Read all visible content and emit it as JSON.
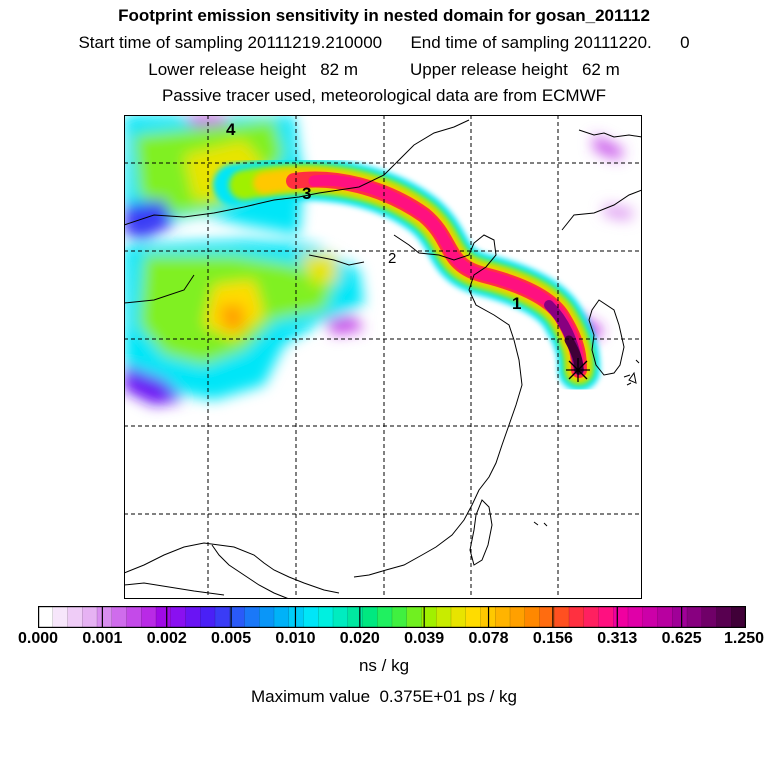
{
  "header": {
    "title": "Footprint emission sensitivity in nested domain for gosan_201112",
    "line2": "Start time of sampling 20111219.210000      End time of sampling 20111220.      0",
    "line3": "Lower release height   82 m           Upper release height   62 m",
    "line4": "Passive tracer used, meteorological data are from ECMWF"
  },
  "map": {
    "labels": [
      "1",
      "2",
      "3",
      "4"
    ],
    "marker": "receptor-star"
  },
  "colorbar": {
    "ticks": [
      "0.000",
      "0.001",
      "0.002",
      "0.005",
      "0.010",
      "0.020",
      "0.039",
      "0.078",
      "0.156",
      "0.313",
      "0.625",
      "1.250"
    ],
    "colors": [
      "#ffffff",
      "#f7e6fb",
      "#efccf7",
      "#e6b2f3",
      "#d98ef0",
      "#cf6cec",
      "#c44ae9",
      "#b92ae6",
      "#a00ae6",
      "#8a10f0",
      "#6a14f4",
      "#4a20f6",
      "#3a3cf6",
      "#2a5af8",
      "#1a78f8",
      "#0a96f8",
      "#00b2f8",
      "#00ccf8",
      "#00e6f8",
      "#00f0e0",
      "#00ecc0",
      "#00e8a0",
      "#00e880",
      "#20f060",
      "#40f040",
      "#70f020",
      "#a0f000",
      "#c8ec00",
      "#e8e400",
      "#ffdc00",
      "#ffc800",
      "#ffb400",
      "#ffa000",
      "#ff8800",
      "#ff6c10",
      "#ff5020",
      "#ff3040",
      "#ff2060",
      "#ff1080",
      "#f000a0",
      "#e000a8",
      "#cc00a8",
      "#b800a0",
      "#a00098",
      "#880080",
      "#700068",
      "#580050",
      "#400038"
    ],
    "units": "ns / kg",
    "max_value": "Maximum value  0.375E+01 ps / kg"
  }
}
